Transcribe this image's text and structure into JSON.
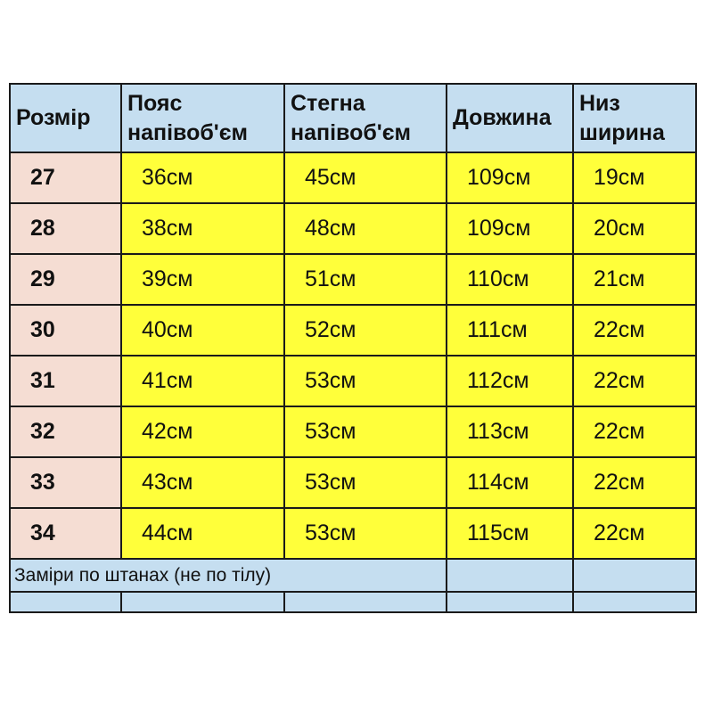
{
  "headers": [
    "Розмір",
    "Пояс напівоб'єм",
    "Стегна напівоб'єм",
    "Довжина",
    "Низ ширина"
  ],
  "header_lines": [
    [
      "Розмір"
    ],
    [
      "Пояс",
      "напівоб'єм"
    ],
    [
      "Стегна",
      "напівоб'єм"
    ],
    [
      "Довжина"
    ],
    [
      "Низ",
      "ширина"
    ]
  ],
  "rows": [
    [
      "27",
      "36см",
      "45см",
      "109см",
      "19см"
    ],
    [
      "28",
      "38см",
      "48см",
      "109см",
      "20см"
    ],
    [
      "29",
      "39см",
      "51см",
      "110см",
      "21см"
    ],
    [
      "30",
      "40см",
      "52см",
      "111см",
      "22см"
    ],
    [
      "31",
      "41см",
      "53см",
      "112см",
      "22см"
    ],
    [
      "32",
      "42см",
      "53см",
      "113см",
      "22см"
    ],
    [
      "33",
      "43см",
      "53см",
      "114см",
      "22см"
    ],
    [
      "34",
      "44см",
      "53см",
      "115см",
      "22см"
    ]
  ],
  "note": "Заміри по штанах (не по тілу)",
  "colors": {
    "header": "#c5def0",
    "size_cell": "#f5ddd3",
    "value_cell": "#ffff3a",
    "border": "#1a1a1a"
  }
}
